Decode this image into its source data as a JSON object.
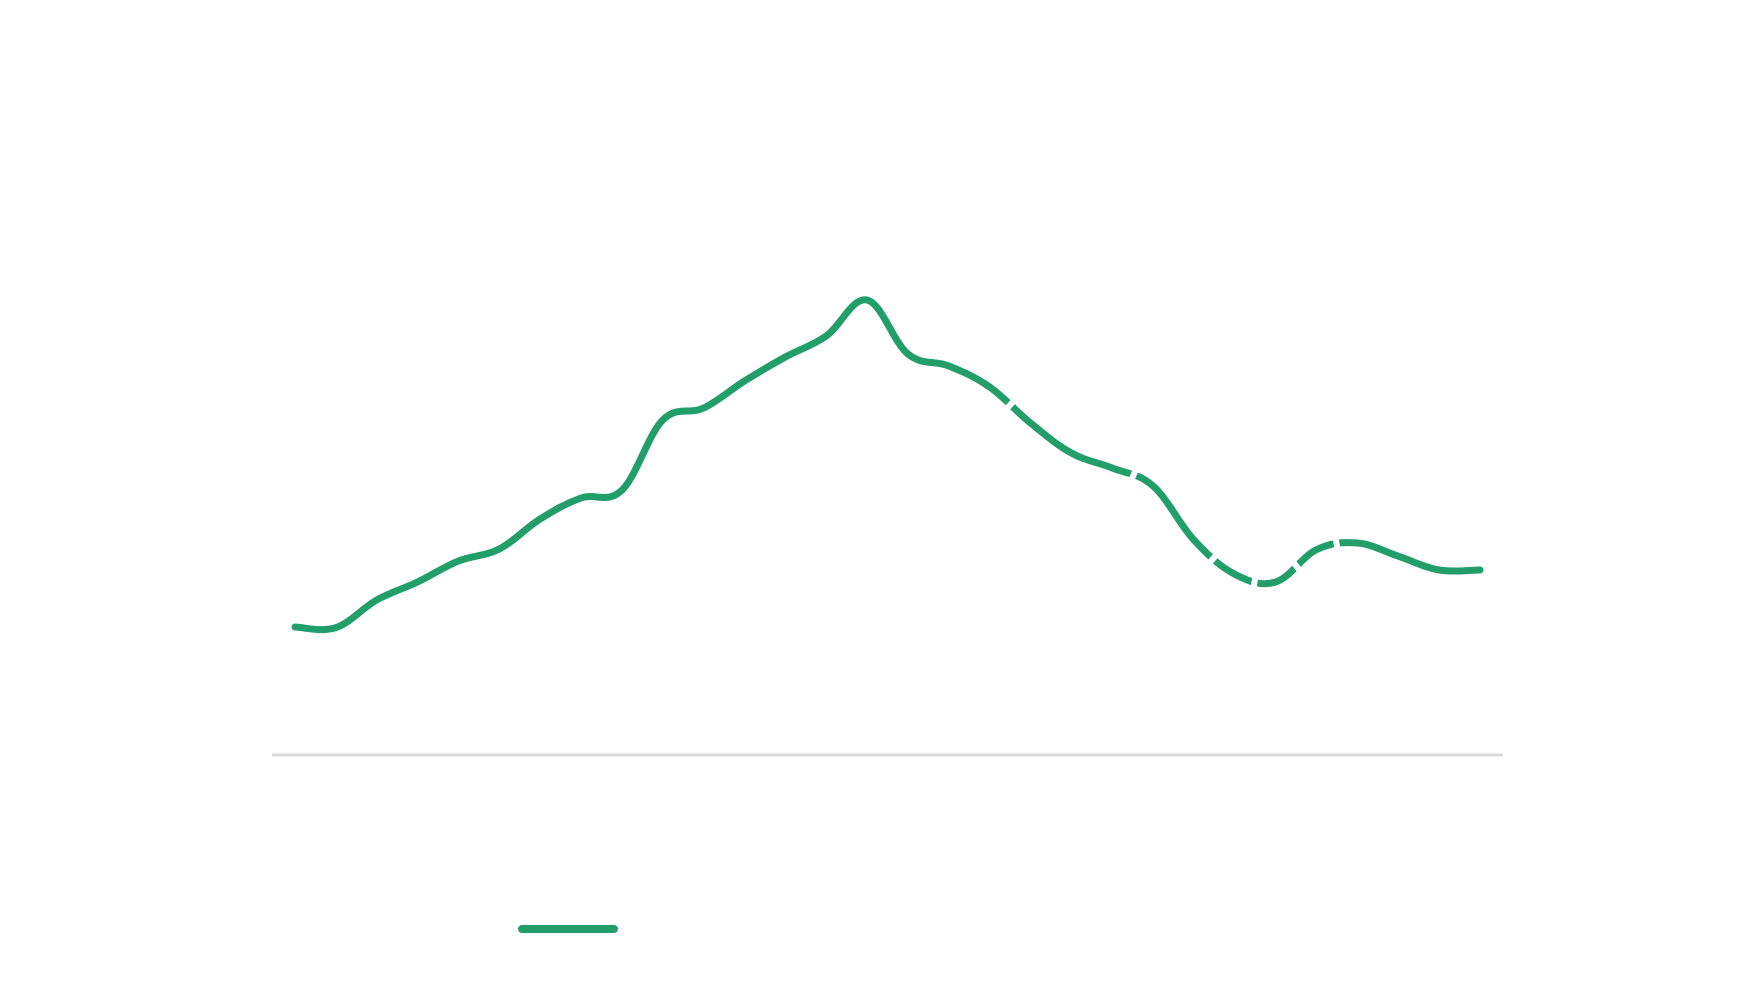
{
  "colors": {
    "background": "#ffffff",
    "axis": "#d9d9d9",
    "series_line": "#229e6b",
    "gap_mask": "#ffffff"
  },
  "legend": {
    "placement": "bottom-left",
    "label": ""
  },
  "chart_data": {
    "type": "line",
    "title": "",
    "xlabel": "",
    "ylabel": "",
    "grid": false,
    "x_axis_line": true,
    "y_axis_line": false,
    "xlim": [
      0,
      29
    ],
    "ylim": [
      0,
      100
    ],
    "x": [
      0,
      1,
      2,
      3,
      4,
      5,
      6,
      7,
      8,
      9,
      10,
      11,
      12,
      13,
      14,
      15,
      16,
      17,
      18,
      19,
      20,
      21,
      22,
      23,
      24,
      25,
      26,
      27,
      28,
      29
    ],
    "series": [
      {
        "name": "",
        "values": [
          20.5,
          20.4,
          25,
          28,
          31.5,
          33.5,
          38.5,
          42,
          43.3,
          55,
          57,
          61.5,
          65.5,
          69,
          75,
          66,
          64,
          60.5,
          54.5,
          49.5,
          47,
          44,
          35,
          29.3,
          28,
          33.4,
          34.5,
          32.3,
          30,
          30
        ],
        "visual_gaps_after_index": [
          17,
          20,
          22,
          23,
          24,
          25
        ]
      }
    ]
  }
}
